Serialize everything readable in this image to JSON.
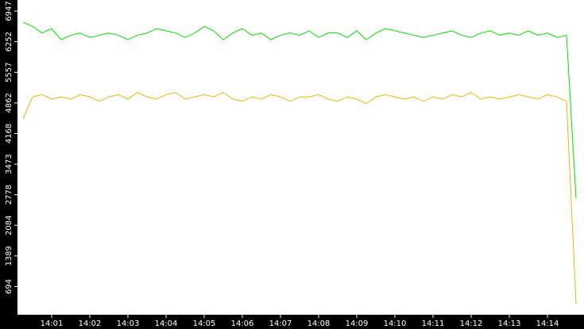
{
  "chart_data": {
    "type": "line",
    "categories": [
      null,
      null,
      null,
      "14:01",
      null,
      null,
      null,
      "14:02",
      null,
      null,
      null,
      "14:03",
      null,
      null,
      null,
      "14:04",
      null,
      null,
      null,
      "14:05",
      null,
      null,
      null,
      "14:06",
      null,
      null,
      null,
      "14:07",
      null,
      null,
      null,
      "14:08",
      null,
      null,
      null,
      "14:09",
      null,
      null,
      null,
      "14:10",
      null,
      null,
      null,
      "14:11",
      null,
      null,
      null,
      "14:12",
      null,
      null,
      null,
      "14:13",
      null,
      null,
      null,
      "14:14",
      null,
      null,
      null
    ],
    "series": [
      {
        "color": "#00e000",
        "values": [
          6700,
          6600,
          6450,
          6550,
          6300,
          6400,
          6450,
          6350,
          6400,
          6450,
          6400,
          6300,
          6400,
          6450,
          6550,
          6500,
          6450,
          6350,
          6450,
          6600,
          6500,
          6300,
          6450,
          6550,
          6400,
          6450,
          6300,
          6400,
          6450,
          6400,
          6500,
          6350,
          6450,
          6450,
          6350,
          6500,
          6300,
          6450,
          6550,
          6500,
          6450,
          6400,
          6350,
          6400,
          6450,
          6500,
          6400,
          6350,
          6450,
          6500,
          6400,
          6450,
          6400,
          6500,
          6400,
          6450,
          6350,
          6400,
          2700
        ]
      },
      {
        "color": "#f0b400",
        "values": [
          4500,
          5000,
          5050,
          4950,
          5000,
          4950,
          5050,
          5000,
          4900,
          5000,
          5050,
          4950,
          5100,
          5000,
          4950,
          5050,
          5100,
          4950,
          5000,
          5050,
          5000,
          5100,
          4950,
          4900,
          5000,
          4950,
          5050,
          5000,
          4900,
          5000,
          5000,
          5050,
          4950,
          4900,
          5000,
          4950,
          4850,
          5000,
          5050,
          5000,
          4950,
          5000,
          4900,
          5000,
          4950,
          5050,
          5000,
          5100,
          4950,
          5000,
          4950,
          5000,
          5050,
          5000,
          4950,
          5050,
          5000,
          4900,
          300
        ]
      }
    ],
    "ylim": [
      0,
      7200
    ],
    "yticks": [
      694,
      1389,
      2084,
      2778,
      3473,
      4168,
      4862,
      5557,
      6252,
      6947
    ]
  }
}
